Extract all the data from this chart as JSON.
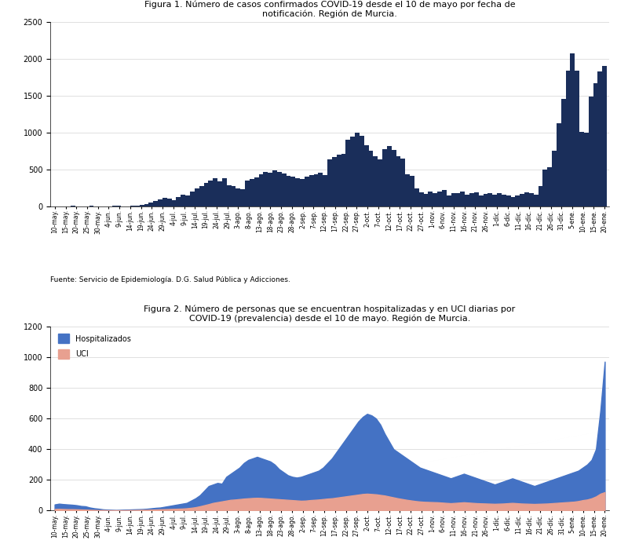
{
  "fig1_title": "Figura 1. Número de casos confirmados COVID-19 desde el 10 de mayo por fecha de\nnotificación. Región de Murcia.",
  "fig2_title": "Figura 2. Número de personas que se encuentran hospitalizadas y en UCI diarias por\nCOVID-19 (prevalencia) desde el 10 de mayo. Región de Murcia.",
  "source_text": "Fuente: Servicio de Epidemiología. D.G. Salud Pública y Adicciones.",
  "bar_color": "#1a2e5a",
  "hosp_color": "#4472c4",
  "uci_color": "#e8a090",
  "fig1_ylim": [
    0,
    2500
  ],
  "fig2_ylim": [
    0,
    1200
  ],
  "fig1_yticks": [
    0,
    500,
    1000,
    1500,
    2000,
    2500
  ],
  "fig2_yticks": [
    0,
    200,
    400,
    600,
    800,
    1000,
    1200
  ],
  "x_labels": [
    "10-may.",
    "15-may.",
    "20-may.",
    "25-may.",
    "30-may.",
    "4-jun.",
    "9-jun.",
    "14-jun.",
    "19-jun.",
    "24-jun.",
    "29-jun.",
    "4-jul.",
    "9-jul.",
    "14-jul.",
    "19-jul.",
    "24-jul.",
    "29-jul.",
    "3-ago.",
    "8-ago.",
    "13-ago.",
    "18-ago.",
    "23-ago.",
    "28-ago.",
    "2-sep.",
    "7-sep.",
    "12-sep.",
    "17-sep.",
    "22-sep.",
    "27-sep.",
    "2-oct.",
    "7-oct.",
    "12-oct.",
    "17-oct.",
    "22-oct.",
    "27-oct.",
    "1-nov.",
    "6-nov.",
    "11-nov.",
    "16-nov.",
    "21-nov.",
    "26-nov.",
    "1-dic.",
    "6-dic.",
    "11-dic.",
    "16-dic.",
    "21-dic.",
    "26-dic.",
    "31-dic.",
    "5-ene.",
    "10-ene.",
    "15-ene.",
    "20-ene."
  ],
  "cases": [
    5,
    3,
    4,
    2,
    6,
    4,
    3,
    5,
    6,
    4,
    5,
    4,
    3,
    6,
    8,
    5,
    4,
    10,
    15,
    20,
    30,
    50,
    80,
    100,
    120,
    110,
    90,
    130,
    160,
    150,
    200,
    250,
    280,
    320,
    350,
    380,
    340,
    380,
    290,
    280,
    250,
    230,
    350,
    370,
    390,
    440,
    470,
    460,
    490,
    470,
    450,
    420,
    400,
    380,
    370,
    410,
    430,
    440,
    460,
    430,
    640,
    670,
    700,
    710,
    910,
    950,
    1000,
    960,
    830,
    760,
    680,
    640,
    780,
    820,
    770,
    680,
    650,
    440,
    420,
    250,
    190,
    170,
    200,
    180,
    200,
    220,
    150,
    180,
    180,
    200,
    160,
    180,
    190,
    150,
    170,
    180,
    160,
    180,
    160,
    150,
    130,
    150,
    170,
    190,
    180,
    160,
    280,
    500,
    530,
    760,
    1130,
    1460,
    1840,
    2080,
    1840,
    1010,
    1000,
    1490,
    1670,
    1830,
    1910
  ],
  "hosp": [
    40,
    45,
    42,
    40,
    38,
    35,
    30,
    28,
    20,
    15,
    12,
    8,
    6,
    5,
    4,
    5,
    6,
    7,
    8,
    9,
    10,
    12,
    15,
    18,
    20,
    25,
    30,
    35,
    40,
    45,
    50,
    65,
    80,
    100,
    130,
    160,
    170,
    180,
    175,
    220,
    240,
    260,
    280,
    310,
    330,
    340,
    350,
    340,
    330,
    320,
    300,
    270,
    250,
    230,
    220,
    215,
    220,
    230,
    240,
    250,
    260,
    280,
    310,
    340,
    380,
    420,
    460,
    500,
    540,
    580,
    610,
    630,
    620,
    600,
    560,
    500,
    450,
    400,
    380,
    360,
    340,
    320,
    300,
    280,
    270,
    260,
    250,
    240,
    230,
    220,
    210,
    220,
    230,
    240,
    230,
    220,
    210,
    200,
    190,
    180,
    170,
    180,
    190,
    200,
    210,
    200,
    190,
    180,
    170,
    160,
    170,
    180,
    190,
    200,
    210,
    220,
    230,
    240,
    250,
    260,
    280,
    300,
    330,
    400,
    650,
    970
  ],
  "uci": [
    10,
    11,
    10,
    9,
    9,
    8,
    7,
    6,
    5,
    4,
    3,
    3,
    2,
    2,
    2,
    2,
    2,
    3,
    3,
    4,
    5,
    5,
    6,
    7,
    8,
    9,
    10,
    11,
    12,
    13,
    15,
    18,
    22,
    28,
    35,
    42,
    50,
    55,
    60,
    65,
    70,
    72,
    75,
    78,
    80,
    82,
    83,
    82,
    80,
    78,
    76,
    74,
    72,
    70,
    68,
    66,
    64,
    65,
    68,
    70,
    72,
    75,
    78,
    80,
    84,
    88,
    92,
    96,
    100,
    104,
    108,
    110,
    108,
    106,
    102,
    98,
    92,
    86,
    80,
    75,
    70,
    66,
    62,
    59,
    57,
    56,
    55,
    54,
    52,
    50,
    48,
    50,
    52,
    54,
    52,
    50,
    48,
    47,
    46,
    45,
    44,
    45,
    46,
    48,
    50,
    48,
    46,
    45,
    44,
    43,
    44,
    45,
    46,
    48,
    50,
    52,
    54,
    56,
    58,
    62,
    68,
    72,
    80,
    92,
    110,
    120
  ]
}
